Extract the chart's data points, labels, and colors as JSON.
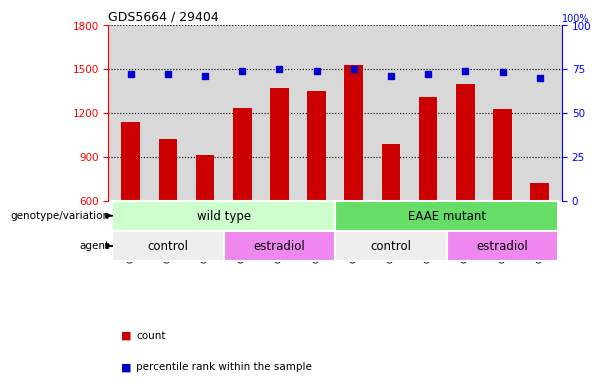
{
  "title": "GDS5664 / 29404",
  "samples": [
    "GSM1361215",
    "GSM1361216",
    "GSM1361217",
    "GSM1361218",
    "GSM1361219",
    "GSM1361220",
    "GSM1361221",
    "GSM1361222",
    "GSM1361223",
    "GSM1361224",
    "GSM1361225",
    "GSM1361226"
  ],
  "counts": [
    1140,
    1020,
    910,
    1230,
    1370,
    1350,
    1530,
    990,
    1310,
    1400,
    1225,
    720
  ],
  "percentiles": [
    72,
    72,
    71,
    74,
    75,
    74,
    75,
    71,
    72,
    74,
    73,
    70
  ],
  "bar_color": "#cc0000",
  "dot_color": "#0000cc",
  "ylim_left": [
    600,
    1800
  ],
  "ylim_right": [
    0,
    100
  ],
  "yticks_left": [
    600,
    900,
    1200,
    1500,
    1800
  ],
  "yticks_right": [
    0,
    25,
    50,
    75,
    100
  ],
  "background_color": "#ffffff",
  "plot_bg_color": "#d8d8d8",
  "genotype_groups": [
    {
      "label": "wild type",
      "start": 0,
      "end": 5,
      "color": "#ccffcc"
    },
    {
      "label": "EAAE mutant",
      "start": 6,
      "end": 11,
      "color": "#66dd66"
    }
  ],
  "agent_groups": [
    {
      "label": "control",
      "start": 0,
      "end": 2,
      "color": "#eeeeee"
    },
    {
      "label": "estradiol",
      "start": 3,
      "end": 5,
      "color": "#ee88ee"
    },
    {
      "label": "control",
      "start": 6,
      "end": 8,
      "color": "#eeeeee"
    },
    {
      "label": "estradiol",
      "start": 9,
      "end": 11,
      "color": "#ee88ee"
    }
  ],
  "legend_count_label": "count",
  "legend_pct_label": "percentile rank within the sample",
  "genotype_label": "genotype/variation",
  "agent_label": "agent"
}
